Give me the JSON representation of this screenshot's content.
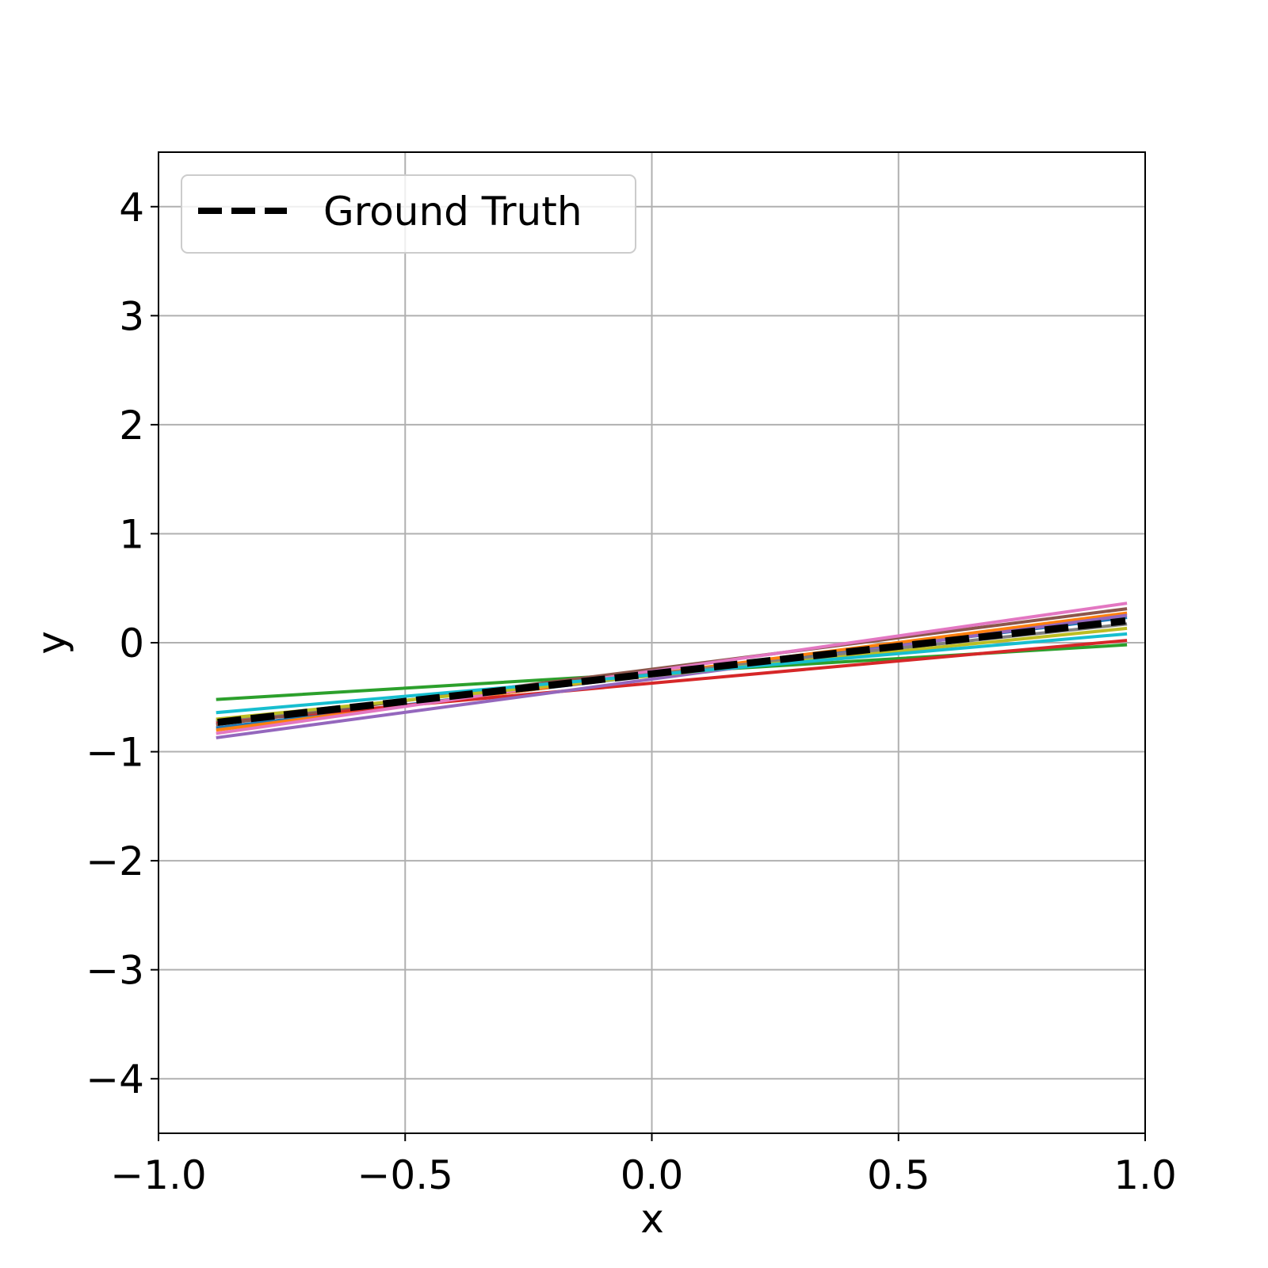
{
  "chart_data": {
    "type": "line",
    "title": "",
    "xlabel": "x",
    "ylabel": "y",
    "xlim": [
      -1.0,
      1.0
    ],
    "ylim": [
      -4.5,
      4.5
    ],
    "x_ticks": [
      -1.0,
      -0.5,
      0.0,
      0.5,
      1.0
    ],
    "x_tick_labels": [
      "−1.0",
      "−0.5",
      "0.0",
      "0.5",
      "1.0"
    ],
    "y_ticks": [
      4,
      3,
      2,
      1,
      0,
      -1,
      -2,
      -3,
      -4
    ],
    "y_tick_labels": [
      "4",
      "3",
      "2",
      "1",
      "0",
      "−1",
      "−2",
      "−3",
      "−4"
    ],
    "grid": true,
    "legend": {
      "position": "top-left",
      "entries": [
        "Ground Truth"
      ]
    },
    "ground_truth": {
      "name": "Ground Truth",
      "color": "#000000",
      "style": "dashed",
      "x": [
        -0.88,
        0.96
      ],
      "y": [
        -0.73,
        0.2
      ]
    },
    "series": [
      {
        "color": "#1f77b4",
        "x": [
          -0.88,
          0.96
        ],
        "y": [
          -0.78,
          0.23
        ]
      },
      {
        "color": "#ff7f0e",
        "x": [
          -0.88,
          0.96
        ],
        "y": [
          -0.8,
          0.27
        ]
      },
      {
        "color": "#2ca02c",
        "x": [
          -0.88,
          0.96
        ],
        "y": [
          -0.52,
          -0.02
        ]
      },
      {
        "color": "#d62728",
        "x": [
          -0.88,
          0.96
        ],
        "y": [
          -0.73,
          0.02
        ]
      },
      {
        "color": "#9467bd",
        "x": [
          -0.88,
          0.96
        ],
        "y": [
          -0.87,
          0.25
        ]
      },
      {
        "color": "#8c564b",
        "x": [
          -0.88,
          0.96
        ],
        "y": [
          -0.75,
          0.31
        ]
      },
      {
        "color": "#e377c2",
        "x": [
          -0.88,
          0.96
        ],
        "y": [
          -0.83,
          0.36
        ]
      },
      {
        "color": "#7f7f7f",
        "x": [
          -0.88,
          0.96
        ],
        "y": [
          -0.71,
          0.17
        ]
      },
      {
        "color": "#bcbd22",
        "x": [
          -0.88,
          0.96
        ],
        "y": [
          -0.7,
          0.13
        ]
      },
      {
        "color": "#17becf",
        "x": [
          -0.88,
          0.96
        ],
        "y": [
          -0.64,
          0.08
        ]
      }
    ]
  }
}
